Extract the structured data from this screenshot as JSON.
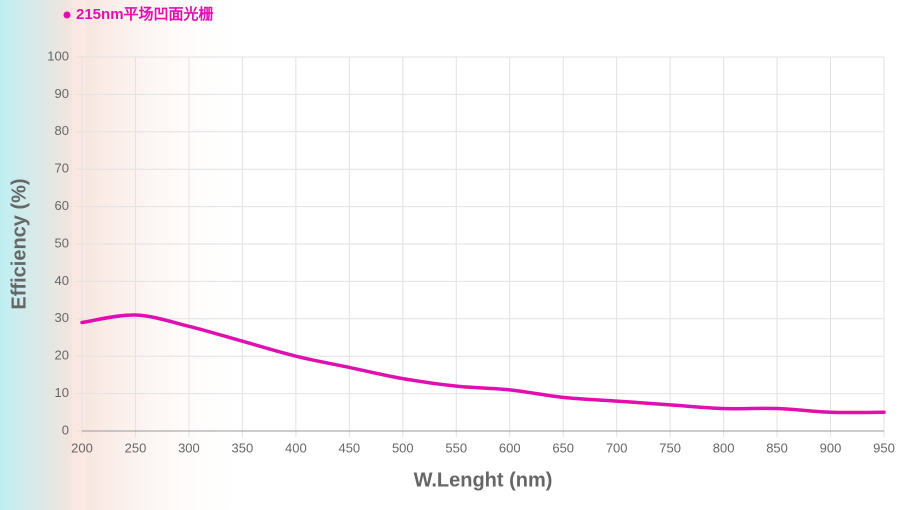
{
  "chart_data": {
    "type": "line",
    "x_label": "W.Lenght (nm)",
    "y_label": "Efficiency (%)",
    "x": [
      200,
      250,
      300,
      350,
      400,
      450,
      500,
      550,
      600,
      650,
      700,
      750,
      800,
      850,
      900,
      950
    ],
    "series": [
      {
        "name": "215nm平场凹面光栅",
        "color": "#e010b0",
        "values": [
          29,
          31,
          28,
          24,
          20,
          17,
          14,
          12,
          11,
          9,
          8,
          7,
          6,
          6,
          5,
          5
        ]
      }
    ],
    "xlim": [
      200,
      950
    ],
    "xticks": [
      200,
      250,
      300,
      350,
      400,
      450,
      500,
      550,
      600,
      650,
      700,
      750,
      800,
      850,
      900,
      950
    ],
    "ylim": [
      0,
      100
    ],
    "yticks": [
      0,
      10,
      20,
      30,
      40,
      50,
      60,
      70,
      80,
      90,
      100
    ],
    "grid": true
  }
}
